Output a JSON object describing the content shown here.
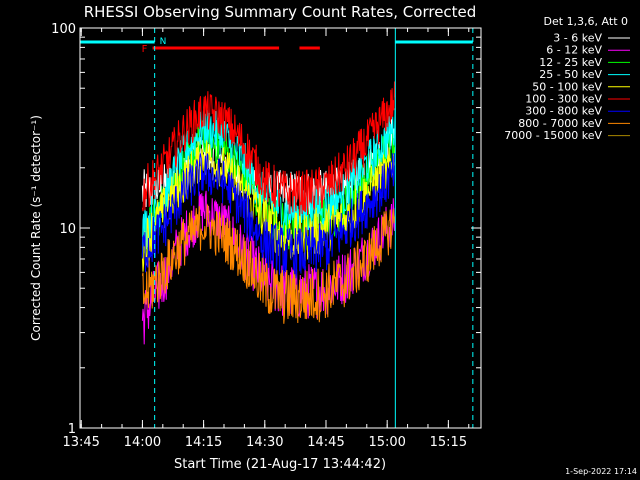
{
  "chart_data": {
    "type": "line",
    "title": "RHESSI Observing Summary Count Rates, Corrected",
    "xlabel": "Start Time (21-Aug-17 13:44:42)",
    "ylabel": "Corrected Count Rate (s⁻¹ detector⁻¹)",
    "y_scale": "log",
    "ylim": [
      1,
      100
    ],
    "xlim": [
      "13:44:42",
      "15:23:00"
    ],
    "x_ticks": [
      "13:45",
      "14:00",
      "14:15",
      "14:30",
      "14:45",
      "15:00",
      "15:15"
    ],
    "y_ticks": [
      "1",
      "10",
      "100"
    ],
    "legend_title": "Det 1,3,6, Att 0",
    "legend_position": "outside-right",
    "timestamp": "1-Sep-2022 17:14",
    "flags": {
      "night_label": "N",
      "flare_label": "F",
      "night_color": "#00ffff",
      "flare_color": "#ff0000",
      "night_intervals": [
        [
          "13:44:42",
          "14:03:00"
        ],
        [
          "15:02:00",
          "15:21:00"
        ]
      ],
      "flare_intervals": [
        [
          "14:02:30",
          "14:33:30"
        ],
        [
          "14:38:30",
          "14:43:30"
        ]
      ],
      "vertical_lines": [
        {
          "time": "13:44:42",
          "style": "solid"
        },
        {
          "time": "14:03:00",
          "style": "dashed"
        },
        {
          "time": "15:02:00",
          "style": "solid"
        },
        {
          "time": "15:21:00",
          "style": "dashed"
        }
      ]
    },
    "series": [
      {
        "name": "3 - 6 keV",
        "color": "#ffffff",
        "x": [
          "14:00",
          "14:05",
          "14:10",
          "14:15",
          "14:20",
          "14:25",
          "14:30",
          "14:35",
          "14:40",
          "14:45",
          "14:50",
          "14:55",
          "15:00",
          "15:02"
        ],
        "values": [
          15,
          16,
          19,
          23,
          21,
          18,
          15,
          15,
          15,
          15,
          16,
          20,
          26,
          30
        ]
      },
      {
        "name": "6 - 12 keV",
        "color": "#ff00ff",
        "x": [
          "14:00",
          "14:05",
          "14:10",
          "14:15",
          "14:20",
          "14:25",
          "14:30",
          "14:35",
          "14:40",
          "14:45",
          "14:50",
          "14:55",
          "15:00",
          "15:02"
        ],
        "values": [
          3.5,
          5.5,
          9,
          12.5,
          10.5,
          7.5,
          5.5,
          4.8,
          4.8,
          5,
          5.8,
          7.5,
          10,
          11
        ]
      },
      {
        "name": "12 - 25 keV",
        "color": "#00ff00",
        "x": [
          "14:00",
          "14:05",
          "14:10",
          "14:15",
          "14:20",
          "14:25",
          "14:30",
          "14:35",
          "14:40",
          "14:45",
          "14:50",
          "14:55",
          "15:00",
          "15:02"
        ],
        "values": [
          8.5,
          13,
          20,
          28,
          25,
          18,
          12,
          10,
          10,
          11,
          13,
          18,
          25,
          28
        ]
      },
      {
        "name": "25 - 50 keV",
        "color": "#00ffff",
        "x": [
          "14:00",
          "14:05",
          "14:10",
          "14:15",
          "14:20",
          "14:25",
          "14:30",
          "14:35",
          "14:40",
          "14:45",
          "14:50",
          "14:55",
          "15:00",
          "15:02"
        ],
        "values": [
          9.5,
          14,
          23,
          32,
          29,
          21,
          14,
          12,
          12,
          13,
          15,
          21,
          28,
          32
        ]
      },
      {
        "name": "50 - 100 keV",
        "color": "#ffff00",
        "x": [
          "14:00",
          "14:05",
          "14:10",
          "14:15",
          "14:20",
          "14:25",
          "14:30",
          "14:35",
          "14:40",
          "14:45",
          "14:50",
          "14:55",
          "15:00",
          "15:02"
        ],
        "values": [
          8,
          12,
          17,
          23,
          20,
          15,
          11,
          9,
          9,
          10,
          11,
          15,
          19,
          22
        ]
      },
      {
        "name": "100 - 300 keV",
        "color": "#ff0000",
        "x": [
          "14:00",
          "14:05",
          "14:10",
          "14:15",
          "14:20",
          "14:25",
          "14:30",
          "14:35",
          "14:40",
          "14:45",
          "14:50",
          "14:55",
          "15:00",
          "15:02"
        ],
        "values": [
          15,
          20,
          30,
          39,
          35,
          26,
          17,
          15,
          15,
          16,
          20,
          27,
          38,
          44
        ]
      },
      {
        "name": "300 - 800 keV",
        "color": "#0000ff",
        "x": [
          "14:00",
          "14:05",
          "14:10",
          "14:15",
          "14:20",
          "14:25",
          "14:30",
          "14:35",
          "14:40",
          "14:45",
          "14:50",
          "14:55",
          "15:00",
          "15:02"
        ],
        "values": [
          7.5,
          10,
          15,
          19,
          17,
          12,
          8.5,
          7.5,
          7.5,
          8,
          10,
          13,
          17,
          19
        ]
      },
      {
        "name": "800 - 7000 keV",
        "color": "#ff8800",
        "x": [
          "14:00",
          "14:05",
          "14:10",
          "14:15",
          "14:20",
          "14:25",
          "14:30",
          "14:35",
          "14:40",
          "14:45",
          "14:50",
          "14:55",
          "15:00",
          "15:02"
        ],
        "values": [
          4.5,
          6,
          8.5,
          10.5,
          9,
          7,
          5,
          4.5,
          4.5,
          4.8,
          5.5,
          7,
          9.5,
          11
        ]
      },
      {
        "name": "7000 - 15000 keV",
        "color": "#aa8800",
        "x": [],
        "values": []
      }
    ]
  }
}
